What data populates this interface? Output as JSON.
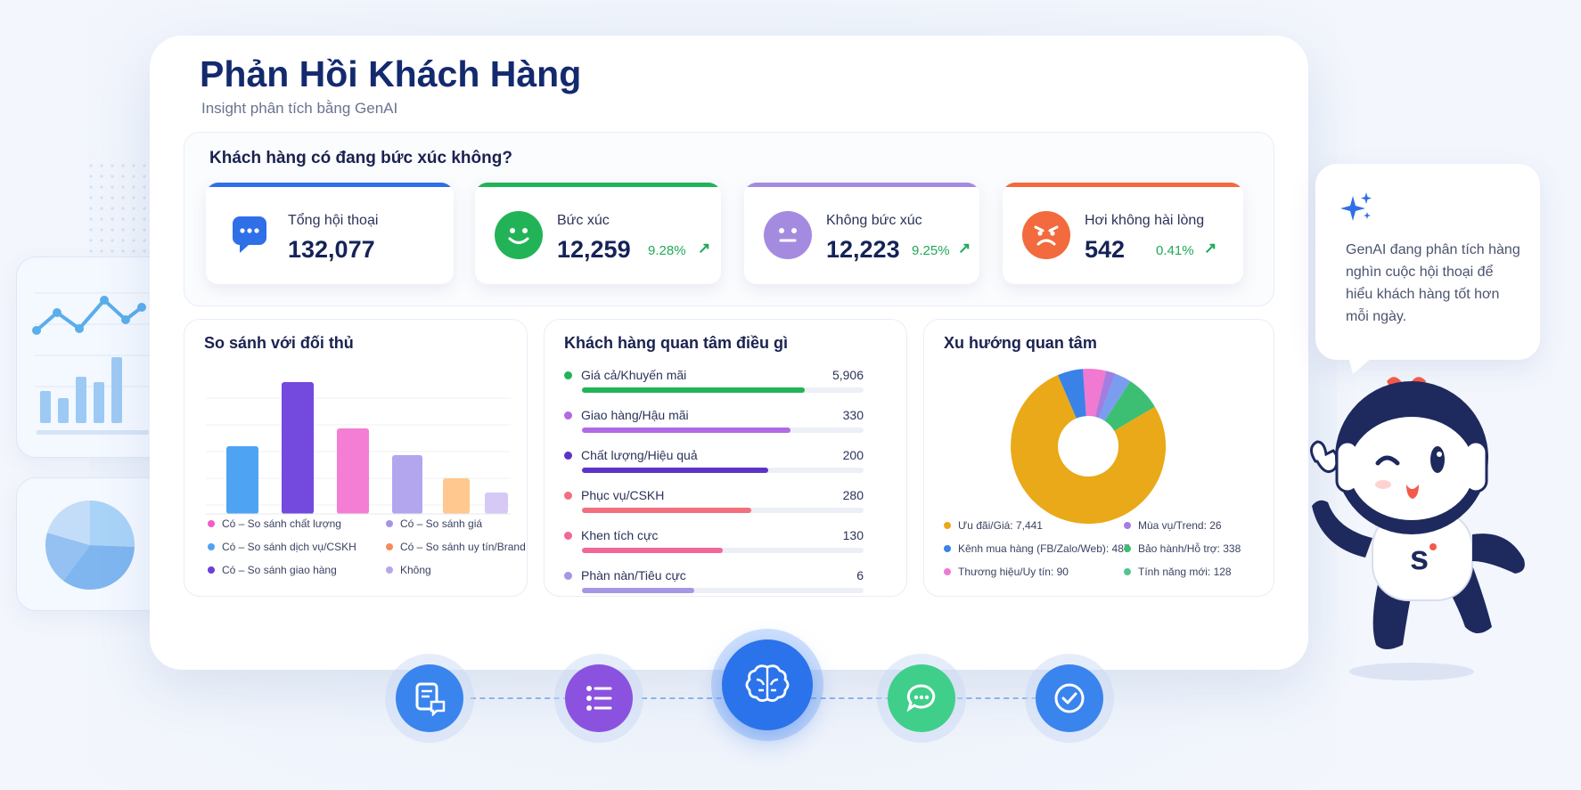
{
  "header": {
    "title": "Phản Hồi Khách Hàng",
    "subtitle": "Insight phân tích bằng GenAI"
  },
  "kpi_section": {
    "heading": "Khách hàng có đang bức xúc không?",
    "cards": [
      {
        "label": "Tổng hội thoại",
        "value": "132,077",
        "pct": "",
        "color": "#2f6fe8",
        "icon": "chat-icon"
      },
      {
        "label": "Bức xúc",
        "value": "12,259",
        "pct": "9.28%",
        "color": "#22b357",
        "icon": "smile-icon"
      },
      {
        "label": "Không bức xúc",
        "value": "12,223",
        "pct": "9.25%",
        "color": "#a58be0",
        "icon": "neutral-face-icon"
      },
      {
        "label": "Hơi không hài lòng",
        "value": "542",
        "pct": "0.41%",
        "color": "#f26a3d",
        "icon": "angry-face-icon"
      }
    ]
  },
  "competitor_panel": {
    "title": "So sánh với đối thủ",
    "legend": [
      {
        "label": "Có – So sánh chất lượng",
        "color": "#f05fc4"
      },
      {
        "label": "Có – So sánh giá",
        "color": "#a794e8"
      },
      {
        "label": "Có – So sánh dịch vụ/CSKH",
        "color": "#4ea4f3"
      },
      {
        "label": "Có – So sánh uy tín/Brand",
        "color": "#f68a5b"
      },
      {
        "label": "Có – So sánh giao hàng",
        "color": "#6b3fd8"
      },
      {
        "label": "Không",
        "color": "#b9a6ea"
      }
    ]
  },
  "concern_panel": {
    "title": "Khách hàng quan tâm điều gì",
    "items": [
      {
        "label": "Giá cả/Khuyến mãi",
        "value": "5,906",
        "fill": 0.79,
        "color": "#22b357"
      },
      {
        "label": "Giao hàng/Hậu mãi",
        "value": "330",
        "fill": 0.74,
        "color": "#b06ae6"
      },
      {
        "label": "Chất lượng/Hiệu quả",
        "value": "200",
        "fill": 0.66,
        "color": "#5b34c7"
      },
      {
        "label": "Phục vụ/CSKH",
        "value": "280",
        "fill": 0.6,
        "color": "#f2707e"
      },
      {
        "label": "Khen tích cực",
        "value": "130",
        "fill": 0.5,
        "color": "#f0679a"
      },
      {
        "label": "Phàn nàn/Tiêu cực",
        "value": "6",
        "fill": 0.4,
        "color": "#a597e6"
      }
    ]
  },
  "trend_panel": {
    "title": "Xu hướng quan tâm",
    "legend": [
      {
        "label": "Ưu đãi/Giá: 7,441",
        "color": "#e9a918"
      },
      {
        "label": "Mùa vụ/Trend: 26",
        "color": "#a57de0"
      },
      {
        "label": "Kênh mua hàng (FB/Zalo/Web): 487",
        "color": "#3a82e8"
      },
      {
        "label": "Bảo hành/Hỗ trợ: 338",
        "color": "#3cbf72"
      },
      {
        "label": "Thương hiệu/Uy tín: 90",
        "color": "#f07ad1"
      },
      {
        "label": "Tính năng mới: 128",
        "color": "#54c38f"
      }
    ]
  },
  "assistant": {
    "text": "GenAI đang phân tích hàng nghìn cuộc hội thoại để hiểu khách hàng tốt hơn mỗi ngày."
  },
  "pipeline": [
    "document-chat-icon",
    "list-icon",
    "brain-icon",
    "message-icon",
    "check-icon"
  ]
}
